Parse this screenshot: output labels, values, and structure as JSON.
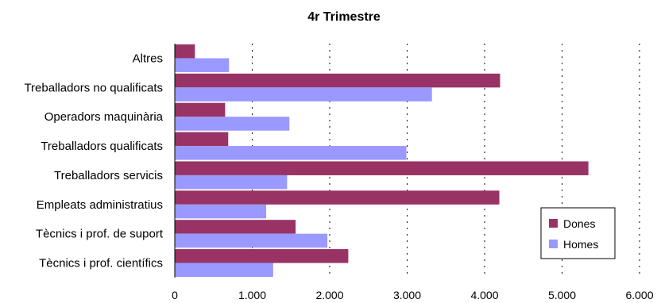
{
  "chart_data": {
    "type": "bar",
    "orientation": "horizontal",
    "title": "4r Trimestre",
    "xlabel": "",
    "ylabel": "",
    "categories": [
      "Altres",
      "Treballadors no qualificats",
      "Operadors maquinària",
      "Treballadors qualificats",
      "Treballadors servicis",
      "Empleats administratius",
      "Tècnics i prof. de suport",
      "Tècnics i prof. científics"
    ],
    "series": [
      {
        "name": "Dones",
        "color": "#993366",
        "values": [
          260,
          4200,
          650,
          690,
          5340,
          4190,
          1560,
          2240
        ]
      },
      {
        "name": "Homes",
        "color": "#9999FF",
        "values": [
          700,
          3320,
          1480,
          2990,
          1450,
          1180,
          1970,
          1270
        ]
      }
    ],
    "xlim": [
      0,
      6000
    ],
    "xticks": [
      0,
      1000,
      2000,
      3000,
      4000,
      5000,
      6000
    ],
    "xtick_labels": [
      "0",
      "1.000",
      "2.000",
      "3.000",
      "4.000",
      "5.000",
      "6.000"
    ],
    "grid": "vertical-dashed",
    "legend_position": "bottom-right"
  }
}
